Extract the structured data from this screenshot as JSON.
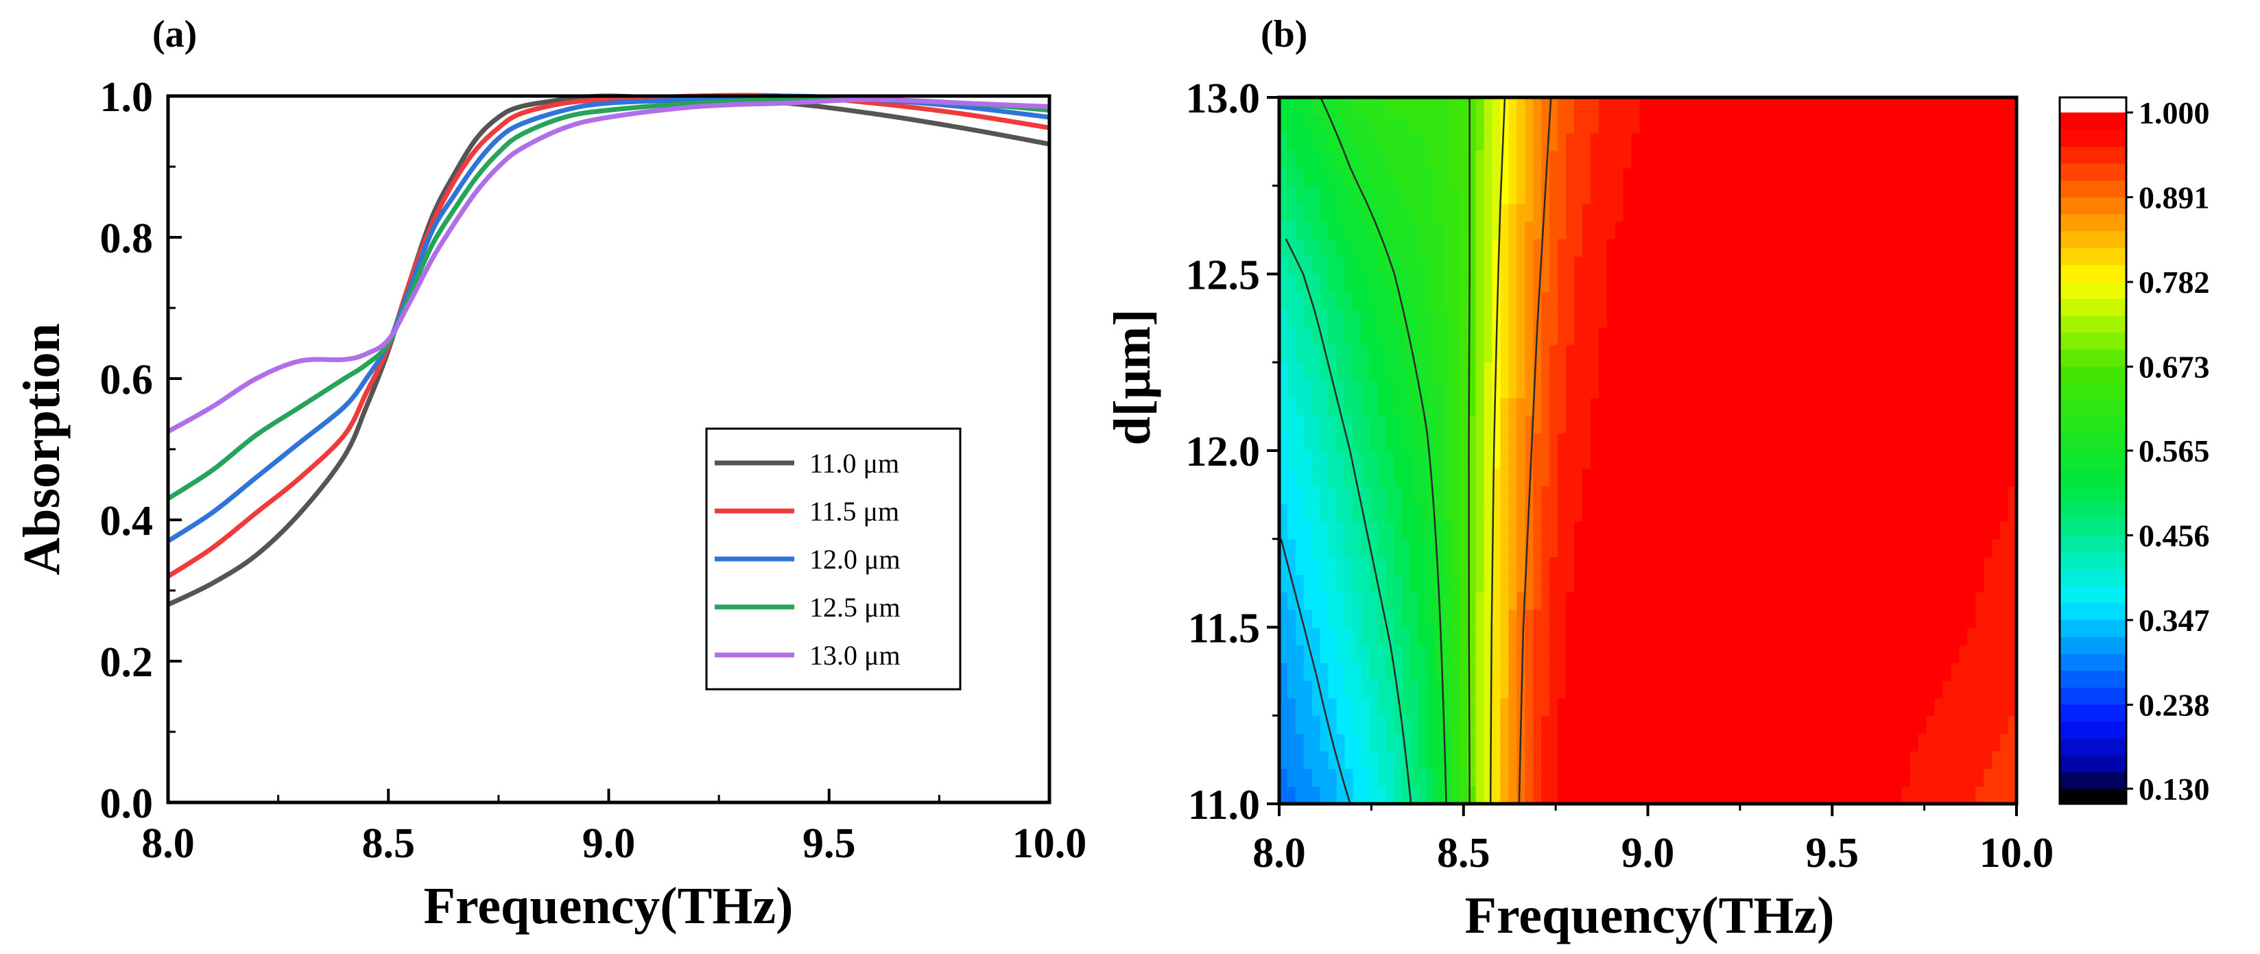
{
  "chart_data": [
    {
      "panel": "(a)",
      "type": "line",
      "xlabel": "Frequency(THz)",
      "ylabel": "Absorption",
      "xlim": [
        8.0,
        10.0
      ],
      "ylim": [
        0.0,
        1.0
      ],
      "xticks": [
        "8.0",
        "8.5",
        "9.0",
        "9.5",
        "10.0"
      ],
      "yticks": [
        "0.0",
        "0.2",
        "0.4",
        "0.6",
        "0.8",
        "1.0"
      ],
      "legend_position": "lower-right",
      "x": [
        8.0,
        8.1,
        8.2,
        8.3,
        8.4,
        8.45,
        8.5,
        8.55,
        8.6,
        8.65,
        8.7,
        8.75,
        8.8,
        8.9,
        9.0,
        9.2,
        9.4,
        9.6,
        9.8,
        10.0
      ],
      "series": [
        {
          "name": "11.0  μm",
          "color": "#555555",
          "values": [
            0.28,
            0.31,
            0.35,
            0.41,
            0.49,
            0.56,
            0.64,
            0.74,
            0.83,
            0.89,
            0.94,
            0.97,
            0.985,
            0.995,
            1.0,
            0.995,
            0.99,
            0.975,
            0.955,
            0.932
          ]
        },
        {
          "name": "11.5  μm",
          "color": "#ef3b3b",
          "values": [
            0.32,
            0.36,
            0.41,
            0.46,
            0.52,
            0.58,
            0.645,
            0.74,
            0.82,
            0.88,
            0.925,
            0.955,
            0.975,
            0.99,
            0.995,
            1.0,
            1.0,
            0.99,
            0.975,
            0.955
          ]
        },
        {
          "name": "12.0  μm",
          "color": "#2f74d8",
          "values": [
            0.37,
            0.41,
            0.46,
            0.51,
            0.56,
            0.6,
            0.65,
            0.73,
            0.81,
            0.86,
            0.905,
            0.94,
            0.96,
            0.98,
            0.99,
            0.995,
            1.0,
            0.995,
            0.985,
            0.97
          ]
        },
        {
          "name": "12.5  μm",
          "color": "#27a35a",
          "values": [
            0.43,
            0.47,
            0.52,
            0.56,
            0.6,
            0.62,
            0.65,
            0.72,
            0.79,
            0.84,
            0.885,
            0.92,
            0.945,
            0.97,
            0.98,
            0.99,
            0.995,
            0.995,
            0.99,
            0.98
          ]
        },
        {
          "name": "13.0  μm",
          "color": "#b06fe8",
          "values": [
            0.525,
            0.56,
            0.6,
            0.625,
            0.627,
            0.635,
            0.655,
            0.71,
            0.77,
            0.82,
            0.865,
            0.9,
            0.925,
            0.955,
            0.97,
            0.985,
            0.99,
            0.995,
            0.99,
            0.985
          ]
        }
      ]
    },
    {
      "panel": "(b)",
      "type": "heatmap",
      "xlabel": "Frequency(THz)",
      "ylabel": "d[μm]",
      "xlim": [
        8.0,
        10.0
      ],
      "ylim": [
        11.0,
        13.0
      ],
      "xticks": [
        "8.0",
        "8.5",
        "9.0",
        "9.5",
        "10.0"
      ],
      "yticks": [
        "11.0",
        "11.5",
        "12.0",
        "12.5",
        "13.0"
      ],
      "colorbar": {
        "min": 0.13,
        "max": 1.0,
        "ticks": [
          "0.130",
          "0.238",
          "0.347",
          "0.456",
          "0.565",
          "0.673",
          "0.782",
          "0.891",
          "1.000"
        ]
      },
      "x": [
        8.0,
        8.1,
        8.2,
        8.3,
        8.4,
        8.45,
        8.5,
        8.55,
        8.6,
        8.65,
        8.7,
        8.75,
        8.8,
        8.9,
        9.0,
        9.2,
        9.4,
        9.6,
        9.8,
        10.0
      ],
      "y": [
        11.0,
        11.5,
        12.0,
        12.5,
        13.0
      ],
      "z": [
        [
          0.28,
          0.31,
          0.35,
          0.41,
          0.49,
          0.56,
          0.64,
          0.74,
          0.83,
          0.89,
          0.94,
          0.97,
          0.985,
          0.995,
          1.0,
          0.995,
          0.99,
          0.975,
          0.955,
          0.932
        ],
        [
          0.32,
          0.36,
          0.41,
          0.46,
          0.52,
          0.58,
          0.645,
          0.74,
          0.82,
          0.88,
          0.925,
          0.955,
          0.975,
          0.99,
          0.995,
          1.0,
          1.0,
          0.99,
          0.975,
          0.955
        ],
        [
          0.37,
          0.41,
          0.46,
          0.51,
          0.56,
          0.6,
          0.65,
          0.73,
          0.81,
          0.86,
          0.905,
          0.94,
          0.96,
          0.98,
          0.99,
          0.995,
          1.0,
          0.995,
          0.985,
          0.97
        ],
        [
          0.43,
          0.47,
          0.52,
          0.56,
          0.6,
          0.62,
          0.65,
          0.72,
          0.79,
          0.84,
          0.885,
          0.92,
          0.945,
          0.97,
          0.98,
          0.99,
          0.995,
          0.995,
          0.99,
          0.98
        ],
        [
          0.525,
          0.56,
          0.6,
          0.625,
          0.627,
          0.635,
          0.655,
          0.71,
          0.77,
          0.82,
          0.865,
          0.9,
          0.925,
          0.955,
          0.97,
          0.985,
          0.99,
          0.995,
          0.99,
          0.985
        ]
      ]
    }
  ]
}
